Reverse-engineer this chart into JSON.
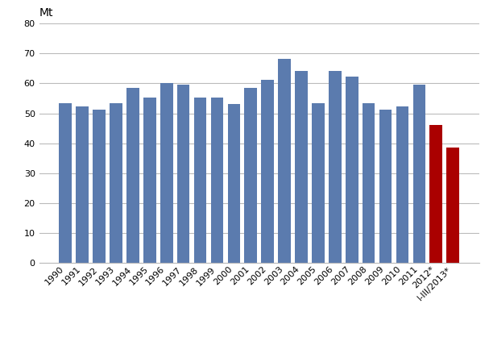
{
  "categories": [
    "1990",
    "1991",
    "1992",
    "1993",
    "1994",
    "1995",
    "1996",
    "1997",
    "1998",
    "1999",
    "2000",
    "2001",
    "2002",
    "2003",
    "2004",
    "2005",
    "2006",
    "2007",
    "2008",
    "2009",
    "2010",
    "2011",
    "2012*",
    "I-III/2013*"
  ],
  "values": [
    53.3,
    52.2,
    51.1,
    53.3,
    58.5,
    55.2,
    60.2,
    59.5,
    55.4,
    55.4,
    53.2,
    58.5,
    61.2,
    68.2,
    64.2,
    53.3,
    64.2,
    62.2,
    53.3,
    51.1,
    52.2,
    59.5,
    46.0,
    38.5
  ],
  "bar_colors": [
    "#5b7bae",
    "#5b7bae",
    "#5b7bae",
    "#5b7bae",
    "#5b7bae",
    "#5b7bae",
    "#5b7bae",
    "#5b7bae",
    "#5b7bae",
    "#5b7bae",
    "#5b7bae",
    "#5b7bae",
    "#5b7bae",
    "#5b7bae",
    "#5b7bae",
    "#5b7bae",
    "#5b7bae",
    "#5b7bae",
    "#5b7bae",
    "#5b7bae",
    "#5b7bae",
    "#5b7bae",
    "#aa0000",
    "#aa0000"
  ],
  "ylabel": "Mt",
  "ylim": [
    0,
    80
  ],
  "yticks": [
    0,
    10,
    20,
    30,
    40,
    50,
    60,
    70,
    80
  ],
  "grid_color": "#bbbbbb",
  "background_color": "#ffffff",
  "ylabel_fontsize": 10,
  "tick_fontsize": 8,
  "bar_width": 0.75
}
